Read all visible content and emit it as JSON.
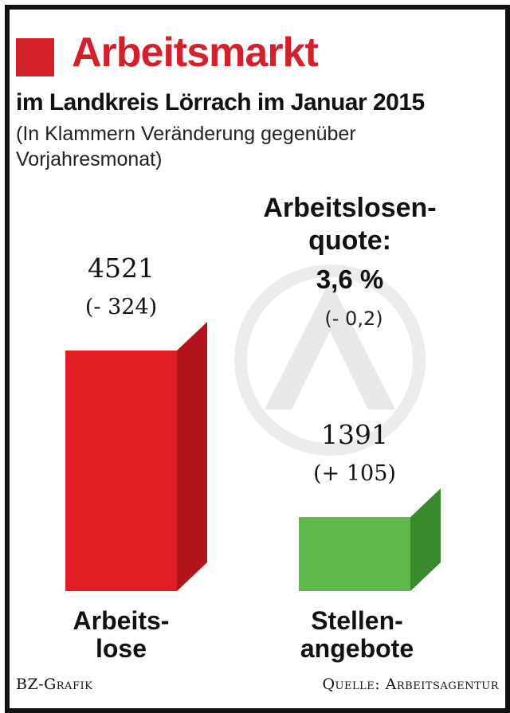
{
  "header": {
    "title": "Arbeitsmarkt",
    "subtitle": "im Landkreis Lörrach im Januar 2015",
    "note": "(In Klammern Veränderung gegenüber Vorjahresmonat)"
  },
  "colors": {
    "accent": "#d3202a",
    "bar_red_front": "#e21d24",
    "bar_red_side": "#b3141b",
    "bar_green_front": "#5fb84a",
    "bar_green_side": "#3a8a2e",
    "watermark": "#ececec"
  },
  "watermark": {
    "icon": "arbeitsagentur-logo-icon"
  },
  "quote": {
    "label_line1": "Arbeitslosen-",
    "label_line2": "quote:",
    "value": "3,6 %",
    "change": "(- 0,2)"
  },
  "chart_data": {
    "type": "bar",
    "categories": [
      "Arbeits- lose",
      "Stellen- angebote"
    ],
    "category_lines": [
      [
        "Arbeits-",
        "lose"
      ],
      [
        "Stellen-",
        "angebote"
      ]
    ],
    "values": [
      4521,
      1391
    ],
    "value_labels": [
      "4521",
      "1391"
    ],
    "changes": [
      -324,
      105
    ],
    "change_labels": [
      "(- 324)",
      "(+ 105)"
    ],
    "title": "Arbeitsmarkt",
    "subtitle": "im Landkreis Lörrach im Januar 2015",
    "xlabel": "",
    "ylabel": "",
    "ylim": [
      0,
      4521
    ],
    "grid": false
  },
  "footer": {
    "credit": "BZ-Grafik",
    "source": "Quelle: Arbeitsagentur"
  }
}
